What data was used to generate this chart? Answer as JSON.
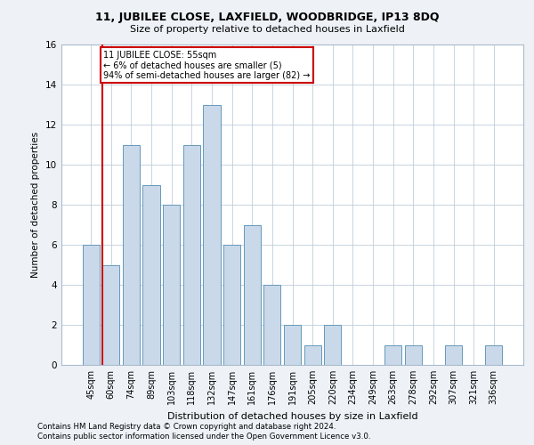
{
  "title1": "11, JUBILEE CLOSE, LAXFIELD, WOODBRIDGE, IP13 8DQ",
  "title2": "Size of property relative to detached houses in Laxfield",
  "xlabel": "Distribution of detached houses by size in Laxfield",
  "ylabel": "Number of detached properties",
  "categories": [
    "45sqm",
    "60sqm",
    "74sqm",
    "89sqm",
    "103sqm",
    "118sqm",
    "132sqm",
    "147sqm",
    "161sqm",
    "176sqm",
    "191sqm",
    "205sqm",
    "220sqm",
    "234sqm",
    "249sqm",
    "263sqm",
    "278sqm",
    "292sqm",
    "307sqm",
    "321sqm",
    "336sqm"
  ],
  "values": [
    6,
    5,
    11,
    9,
    8,
    11,
    13,
    6,
    7,
    4,
    2,
    1,
    2,
    0,
    0,
    1,
    1,
    0,
    1,
    0,
    1
  ],
  "bar_color": "#c9d9ea",
  "bar_edge_color": "#6699bb",
  "highlight_color": "#cc0000",
  "annotation_title": "11 JUBILEE CLOSE: 55sqm",
  "annotation_line2": "← 6% of detached houses are smaller (5)",
  "annotation_line3": "94% of semi-detached houses are larger (82) →",
  "annotation_box_color": "#cc0000",
  "ylim": [
    0,
    16
  ],
  "yticks": [
    0,
    2,
    4,
    6,
    8,
    10,
    12,
    14,
    16
  ],
  "footnote1": "Contains HM Land Registry data © Crown copyright and database right 2024.",
  "footnote2": "Contains public sector information licensed under the Open Government Licence v3.0.",
  "bg_color": "#eef2f7",
  "plot_bg_color": "#ffffff"
}
